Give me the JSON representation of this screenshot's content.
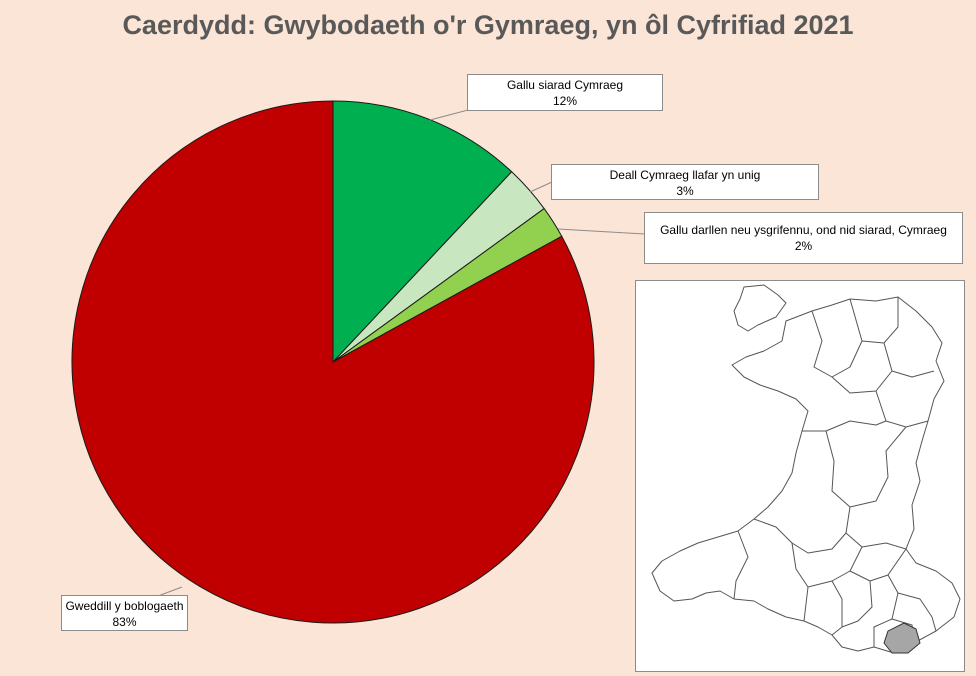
{
  "chart_data": {
    "type": "pie",
    "title": "Caerdydd: Gwybodaeth o'r Gymraeg, yn ôl Cyfrifiad 2021",
    "slices": [
      {
        "label": "Gallu siarad Cymraeg",
        "value": 12,
        "value_label": "12%",
        "color": "#00b050"
      },
      {
        "label": "Deall Cymraeg llafar yn unig",
        "value": 3,
        "value_label": "3%",
        "color": "#c8e6c0"
      },
      {
        "label": "Gallu darllen neu ysgrifennu, ond nid siarad, Cymraeg",
        "value": 2,
        "value_label": "2%",
        "color": "#92d050"
      },
      {
        "label": "Gweddill y boblogaeth",
        "value": 83,
        "value_label": "83%",
        "color": "#c00000"
      }
    ],
    "start_angle": "12 o'clock",
    "direction": "clockwise",
    "legend": "none (data callouts)"
  },
  "inset_map": {
    "region": "Wales local authorities",
    "highlighted": "Caerdydd",
    "highlight_color": "#a6a6a6"
  },
  "colors": {
    "background": "#fbe5d6",
    "title": "#595959"
  }
}
